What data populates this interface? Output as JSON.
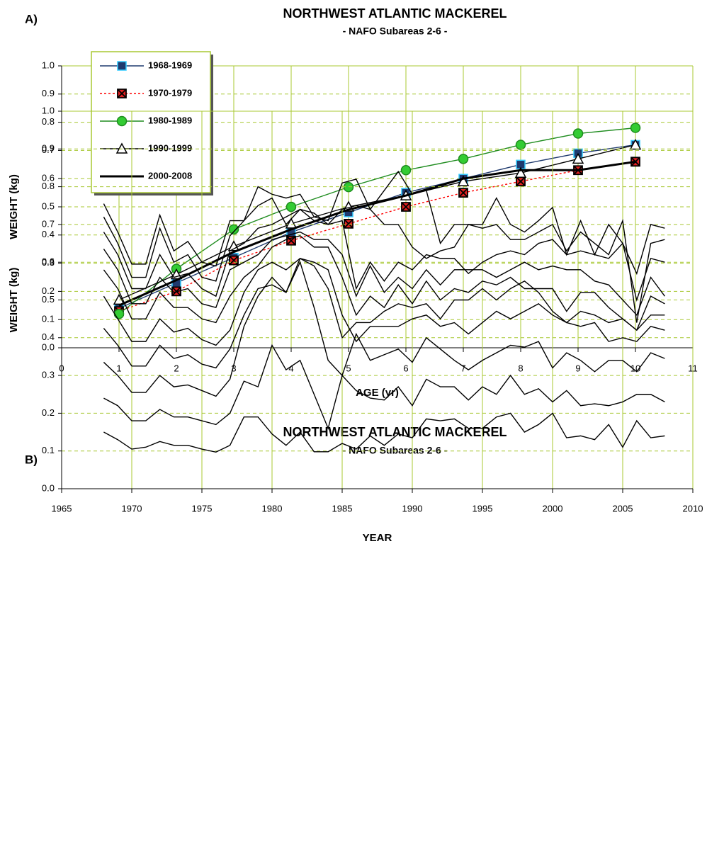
{
  "chart_data": [
    {
      "type": "line",
      "panel_label": "A)",
      "title": "NORTHWEST ATLANTIC MACKEREL",
      "subtitle": "- NAFO Subareas 2-6 -",
      "xlabel": "AGE (yr)",
      "ylabel": "WEIGHT (kg)",
      "x": [
        1,
        2,
        3,
        4,
        5,
        6,
        7,
        8,
        9,
        10
      ],
      "xlim": [
        0,
        11
      ],
      "xticks": [
        0,
        1,
        2,
        3,
        4,
        5,
        6,
        7,
        8,
        9,
        10,
        11
      ],
      "ylim": [
        0,
        1
      ],
      "yticks": [
        {
          "value": 0,
          "label": "0.0"
        },
        0.1,
        0.2,
        0.3,
        0.4,
        0.5,
        0.6,
        0.7,
        0.8,
        0.9,
        {
          "value": 1,
          "label": "1.0"
        }
      ],
      "grid": true,
      "legend": "upper left",
      "series": [
        {
          "name": "1968-1969",
          "color": "#1f3a6e",
          "marker": "square",
          "marker_fill": "#1f3a6e",
          "marker_edge": "#33ccff",
          "values": [
            0.14,
            0.23,
            0.32,
            0.41,
            0.48,
            0.55,
            0.6,
            0.65,
            0.69,
            0.72
          ]
        },
        {
          "name": "1970-1979",
          "color": "#ff0000",
          "dash": true,
          "marker": "x",
          "marker_fill": "#e02020",
          "marker_edge": "#000000",
          "values": [
            0.13,
            0.2,
            0.31,
            0.38,
            0.44,
            0.5,
            0.55,
            0.59,
            0.63,
            0.66
          ]
        },
        {
          "name": "1980-1989",
          "color": "#1e8c1e",
          "marker": "circle",
          "marker_fill": "#33cc33",
          "marker_edge": "#1e8c1e",
          "values": [
            0.12,
            0.28,
            0.42,
            0.5,
            0.57,
            0.63,
            0.67,
            0.72,
            0.76,
            0.78
          ]
        },
        {
          "name": "1990-1999",
          "color": "#000000",
          "marker": "triangle",
          "marker_fill": "#ffffff",
          "marker_edge": "#000000",
          "values": [
            0.17,
            0.26,
            0.36,
            0.44,
            0.5,
            0.54,
            0.59,
            0.62,
            0.67,
            0.72
          ]
        },
        {
          "name": "2000-2008",
          "color": "#000000",
          "width": 3,
          "values": [
            0.15,
            0.24,
            0.34,
            0.42,
            0.49,
            0.54,
            0.6,
            0.63,
            0.63,
            0.66
          ]
        }
      ]
    },
    {
      "type": "line",
      "panel_label": "B)",
      "title": "NORTHWEST ATLANTIC MACKEREL",
      "subtitle": "- NAFO Subareas 2-6 -",
      "xlabel": "YEAR",
      "ylabel": "WEIGHT (kg)",
      "x": [
        1968,
        1969,
        1970,
        1971,
        1972,
        1973,
        1974,
        1975,
        1976,
        1977,
        1978,
        1979,
        1980,
        1981,
        1982,
        1983,
        1984,
        1985,
        1986,
        1987,
        1988,
        1989,
        1990,
        1991,
        1992,
        1993,
        1994,
        1995,
        1996,
        1997,
        1998,
        1999,
        2000,
        2001,
        2002,
        2003,
        2004,
        2005,
        2006,
        2007,
        2008
      ],
      "xlim": [
        1965,
        2010
      ],
      "xticks": [
        1965,
        1970,
        1975,
        1980,
        1985,
        1990,
        1995,
        2000,
        2005,
        2010
      ],
      "ylim": [
        0,
        1
      ],
      "yticks": [
        {
          "value": 0,
          "label": "0.0"
        },
        0.1,
        0.2,
        0.3,
        0.4,
        0.5,
        0.6,
        0.7,
        0.8,
        0.9,
        {
          "value": 1,
          "label": "1.0"
        }
      ],
      "grid": true,
      "series": [
        {
          "color": "#000000",
          "values": [
            0.15,
            0.13,
            0.105,
            0.11,
            0.125,
            0.115,
            0.115,
            0.105,
            0.097,
            0.115,
            0.19,
            0.19,
            0.145,
            0.115,
            0.15,
            0.098,
            0.098,
            0.12,
            0.105,
            0.14,
            0.115,
            0.145,
            0.135,
            0.185,
            0.18,
            0.185,
            0.16,
            0.16,
            0.19,
            0.2,
            0.15,
            0.17,
            0.2,
            0.135,
            0.14,
            0.13,
            0.17,
            0.11,
            0.18,
            0.135,
            0.14
          ]
        },
        {
          "color": "#000000",
          "values": [
            0.24,
            0.22,
            0.18,
            0.18,
            0.21,
            0.19,
            0.19,
            0.18,
            0.17,
            0.2,
            0.285,
            0.27,
            0.38,
            0.315,
            0.34,
            0.25,
            0.16,
            0.3,
            0.26,
            0.24,
            0.235,
            0.27,
            0.22,
            0.29,
            0.27,
            0.27,
            0.235,
            0.27,
            0.25,
            0.3,
            0.25,
            0.265,
            0.23,
            0.26,
            0.22,
            0.225,
            0.22,
            0.23,
            0.25,
            0.25,
            0.23
          ]
        },
        {
          "color": "#000000",
          "values": [
            0.335,
            0.3,
            0.255,
            0.255,
            0.3,
            0.27,
            0.275,
            0.26,
            0.245,
            0.29,
            0.43,
            0.51,
            0.56,
            0.52,
            0.6,
            0.48,
            0.34,
            0.3,
            0.41,
            0.34,
            0.355,
            0.37,
            0.335,
            0.4,
            0.37,
            0.34,
            0.315,
            0.34,
            0.36,
            0.38,
            0.375,
            0.39,
            0.32,
            0.36,
            0.34,
            0.31,
            0.34,
            0.34,
            0.31,
            0.36,
            0.345
          ]
        },
        {
          "color": "#000000",
          "values": [
            0.425,
            0.38,
            0.325,
            0.325,
            0.38,
            0.345,
            0.355,
            0.33,
            0.32,
            0.37,
            0.46,
            0.53,
            0.54,
            0.52,
            0.61,
            0.6,
            0.58,
            0.46,
            0.39,
            0.43,
            0.43,
            0.43,
            0.45,
            0.46,
            0.43,
            0.44,
            0.41,
            0.44,
            0.47,
            0.45,
            0.47,
            0.49,
            0.46,
            0.44,
            0.43,
            0.44,
            0.39,
            0.4,
            0.39,
            0.43,
            0.42
          ]
        },
        {
          "color": "#000000",
          "values": [
            0.51,
            0.45,
            0.39,
            0.39,
            0.45,
            0.415,
            0.425,
            0.395,
            0.38,
            0.42,
            0.52,
            0.58,
            0.6,
            0.58,
            0.61,
            0.59,
            0.53,
            0.4,
            0.44,
            0.44,
            0.47,
            0.49,
            0.48,
            0.49,
            0.45,
            0.5,
            0.5,
            0.53,
            0.5,
            0.53,
            0.55,
            0.52,
            0.47,
            0.44,
            0.47,
            0.46,
            0.44,
            0.45,
            0.42,
            0.46,
            0.46
          ]
        },
        {
          "color": "#000000",
          "values": [
            0.58,
            0.53,
            0.45,
            0.45,
            0.52,
            0.48,
            0.48,
            0.45,
            0.44,
            0.51,
            0.56,
            0.59,
            0.64,
            0.66,
            0.67,
            0.64,
            0.64,
            0.56,
            0.46,
            0.51,
            0.48,
            0.54,
            0.49,
            0.55,
            0.5,
            0.53,
            0.52,
            0.55,
            0.54,
            0.56,
            0.53,
            0.53,
            0.53,
            0.47,
            0.52,
            0.52,
            0.48,
            0.45,
            0.42,
            0.51,
            0.49
          ]
        },
        {
          "color": "#000000",
          "values": [
            0.635,
            0.58,
            0.49,
            0.49,
            0.56,
            0.52,
            0.53,
            0.49,
            0.48,
            0.58,
            0.6,
            0.62,
            0.66,
            0.67,
            0.68,
            0.66,
            0.66,
            0.62,
            0.51,
            0.59,
            0.52,
            0.56,
            0.53,
            0.58,
            0.54,
            0.58,
            0.58,
            0.58,
            0.56,
            0.58,
            0.6,
            0.58,
            0.59,
            0.58,
            0.58,
            0.55,
            0.54,
            0.5,
            0.46,
            0.56,
            0.51
          ]
        },
        {
          "color": "#000000",
          "values": [
            0.68,
            0.62,
            0.53,
            0.53,
            0.62,
            0.56,
            0.57,
            0.53,
            0.51,
            0.63,
            0.65,
            0.69,
            0.7,
            0.72,
            0.74,
            0.71,
            0.7,
            0.71,
            0.53,
            0.6,
            0.55,
            0.6,
            0.58,
            0.62,
            0.61,
            0.61,
            0.57,
            0.6,
            0.62,
            0.63,
            0.62,
            0.65,
            0.66,
            0.62,
            0.63,
            0.62,
            0.61,
            0.65,
            0.5,
            0.61,
            0.6
          ]
        },
        {
          "color": "#000000",
          "values": [
            0.72,
            0.65,
            0.56,
            0.56,
            0.69,
            0.6,
            0.62,
            0.56,
            0.55,
            0.67,
            0.71,
            0.75,
            0.77,
            0.7,
            0.74,
            0.73,
            0.7,
            0.74,
            0.75,
            0.74,
            0.7,
            0.7,
            0.64,
            0.61,
            0.63,
            0.64,
            0.7,
            0.69,
            0.7,
            0.66,
            0.66,
            0.68,
            0.7,
            0.63,
            0.68,
            0.65,
            0.62,
            0.71,
            0.44,
            0.65,
            0.66
          ]
        },
        {
          "color": "#000000",
          "values": [
            0.755,
            0.68,
            0.595,
            0.595,
            0.725,
            0.63,
            0.655,
            0.6,
            0.59,
            0.71,
            0.71,
            0.8,
            0.78,
            0.77,
            0.78,
            0.72,
            0.71,
            0.81,
            0.82,
            0.74,
            0.79,
            0.84,
            0.78,
            0.79,
            0.65,
            0.7,
            0.7,
            0.7,
            0.77,
            0.7,
            0.68,
            0.71,
            0.745,
            0.62,
            0.71,
            0.62,
            0.7,
            0.65,
            0.57,
            0.7,
            0.69
          ]
        }
      ]
    }
  ]
}
